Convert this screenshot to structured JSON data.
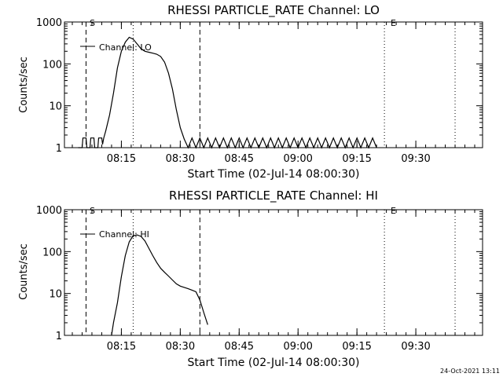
{
  "timestamp": "24-Oct-2021 13:11",
  "chart_data": [
    {
      "type": "line",
      "title": "RHESSI PARTICLE_RATE Channel: LO",
      "xlabel": "Start Time (02-Jul-14 08:00:30)",
      "ylabel": "Counts/sec",
      "yscale": "log",
      "ylim": [
        1,
        1000
      ],
      "xlim_minutes": [
        0,
        76
      ],
      "x_tick_labels": [
        "08:15",
        "08:30",
        "08:45",
        "09:00",
        "09:15",
        "09:30"
      ],
      "y_tick_labels": [
        "1",
        "10",
        "100",
        "1000"
      ],
      "markers": {
        "start_label": "S",
        "end_label": "E"
      },
      "legend": {
        "label": "Channel: LO",
        "position": "top-left"
      },
      "series": [
        {
          "x": [
            0,
            1,
            1.2,
            2,
            2.2,
            3,
            3.2,
            4,
            4.2,
            5,
            5.2,
            6,
            6.2,
            6.5,
            7,
            8,
            9,
            10,
            11,
            12,
            13,
            14,
            15,
            16,
            17,
            18,
            19,
            20,
            21,
            22,
            23,
            24,
            25,
            26,
            27,
            28,
            29,
            30,
            31,
            32,
            33,
            34,
            35,
            36,
            37,
            38,
            39,
            40,
            41,
            42,
            43,
            44,
            45,
            46,
            47,
            48,
            49,
            50,
            51,
            52,
            53,
            54,
            55,
            56,
            57,
            58,
            59,
            60,
            61,
            62,
            63,
            64,
            65,
            66,
            67,
            68,
            69,
            70,
            71,
            72,
            73,
            74,
            75,
            76
          ],
          "y": [
            1,
            1,
            1.7,
            1.7,
            1,
            1,
            1.7,
            1.7,
            1,
            1,
            1.7,
            1.7,
            1.2,
            1.7,
            2.5,
            6,
            20,
            80,
            200,
            330,
            430,
            390,
            300,
            230,
            200,
            190,
            180,
            170,
            150,
            110,
            60,
            25,
            8,
            3,
            1.6,
            1,
            1.7,
            1,
            1.7,
            1,
            1.7,
            1,
            1.7,
            1,
            1.7,
            1,
            1.7,
            1,
            1.7,
            1,
            1.7,
            1,
            1.7,
            1,
            1.7,
            1,
            1.7,
            1,
            1.7,
            1,
            1.7,
            1,
            1.7,
            1,
            1.7,
            1,
            1.7,
            1,
            1.7,
            1,
            1.7,
            1,
            1.7,
            1,
            1.7,
            1,
            1.7,
            1,
            1.7,
            1,
            1.7,
            1,
            1.7,
            1
          ]
        }
      ]
    },
    {
      "type": "line",
      "title": "RHESSI PARTICLE_RATE Channel: HI",
      "xlabel": "Start Time (02-Jul-14 08:00:30)",
      "ylabel": "Counts/sec",
      "yscale": "log",
      "ylim": [
        1,
        1000
      ],
      "xlim_minutes": [
        0,
        76
      ],
      "x_tick_labels": [
        "08:15",
        "08:30",
        "08:45",
        "09:00",
        "09:15",
        "09:30"
      ],
      "y_tick_labels": [
        "1",
        "10",
        "100",
        "1000"
      ],
      "markers": {
        "start_label": "S",
        "end_label": "E"
      },
      "legend": {
        "label": "Channel: HI",
        "position": "top-left"
      },
      "series": [
        {
          "x": [
            8.5,
            9,
            10,
            11,
            12,
            13,
            14,
            15,
            16,
            17,
            18,
            19,
            20,
            21,
            22,
            23,
            24,
            25,
            26,
            27,
            28,
            29,
            30,
            31,
            32,
            33
          ],
          "y": [
            1,
            2,
            6,
            25,
            80,
            170,
            240,
            250,
            230,
            180,
            120,
            80,
            55,
            40,
            32,
            26,
            21,
            17,
            15,
            14,
            13,
            12,
            11,
            7,
            3.5,
            1.8
          ]
        }
      ]
    }
  ]
}
